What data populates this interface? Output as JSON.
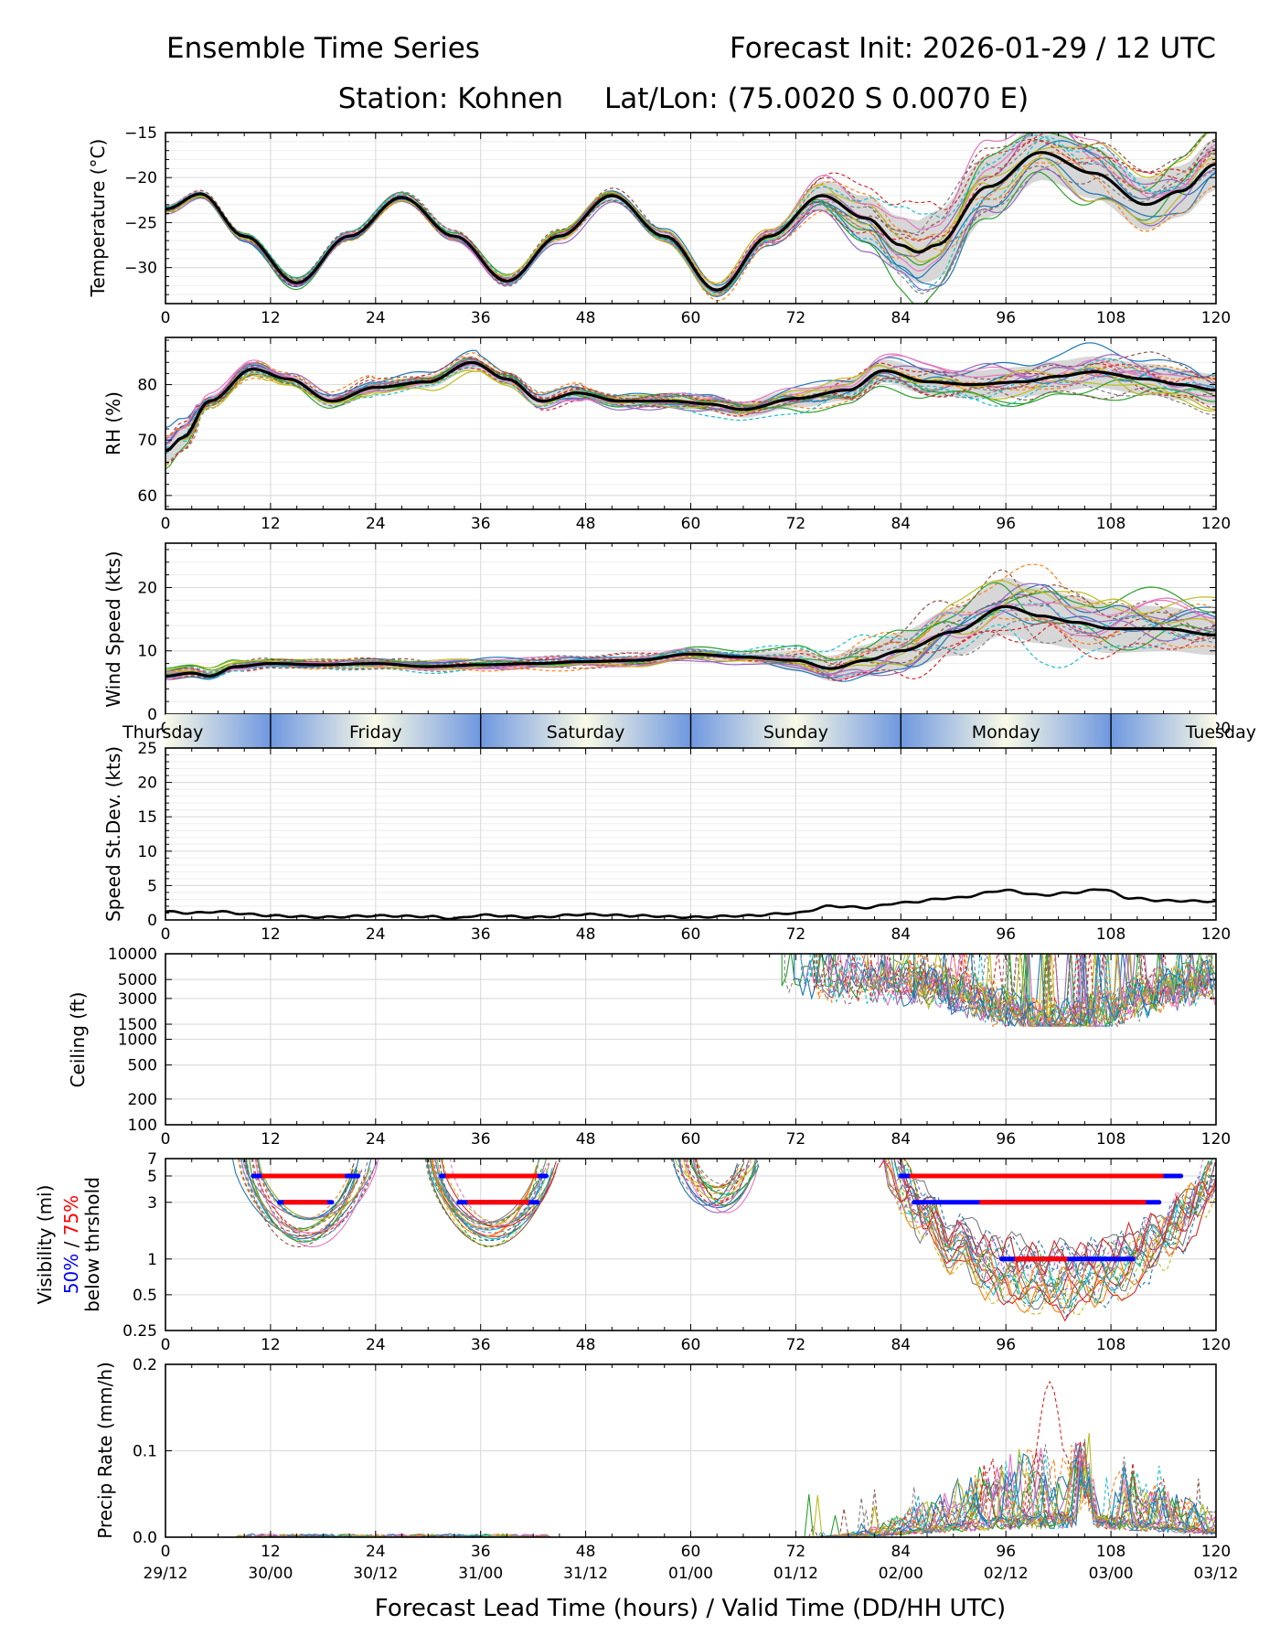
{
  "header": {
    "title_left": "Ensemble Time Series",
    "title_right": "Forecast Init: 2026-01-29 / 12 UTC",
    "station": "Station: Kohnen",
    "latlon": "Lat/Lon: (75.0020 S 0.0070 E)"
  },
  "xaxis": {
    "ticks": [
      0,
      12,
      24,
      36,
      48,
      60,
      72,
      84,
      96,
      108,
      120
    ],
    "valid_labels": [
      "29/12",
      "30/00",
      "30/12",
      "31/00",
      "31/12",
      "01/00",
      "01/12",
      "02/00",
      "02/12",
      "03/00",
      "03/12"
    ],
    "label": "Forecast Lead Time (hours) / Valid Time (DD/HH UTC)"
  },
  "days": [
    "Thursday",
    "Friday",
    "Saturday",
    "Sunday",
    "Monday",
    "Tuesday"
  ],
  "colors": {
    "members": [
      "#1f77b4",
      "#ff7f0e",
      "#2ca02c",
      "#d62728",
      "#9467bd",
      "#8c564b",
      "#e377c2",
      "#7f7f7f",
      "#bcbd22",
      "#17becf"
    ],
    "mean": "#000000",
    "spread": "#d3d3d3",
    "vis50": "#0000ff",
    "vis75": "#ff0000",
    "day_light": "#fafae6",
    "day_dark": "#6f98e0"
  },
  "chart_data": [
    {
      "id": "temperature",
      "type": "line",
      "ylabel": "Temperature (°C)",
      "ylim": [
        -34,
        -15
      ],
      "yticks": [
        -15,
        -20,
        -25,
        -30
      ],
      "ytick_labels": [
        "−15",
        "−20",
        "−25",
        "−30"
      ],
      "mean_series": {
        "x": [
          0,
          4,
          9,
          15,
          21,
          27,
          33,
          39,
          45,
          51,
          57,
          63,
          69,
          75,
          80,
          84,
          86,
          88,
          94,
          100,
          106,
          112,
          116,
          120
        ],
        "y": [
          -23.5,
          -21.8,
          -26.5,
          -31.7,
          -26.5,
          -22.2,
          -26.5,
          -31.5,
          -26.5,
          -22,
          -26.5,
          -32.5,
          -26.5,
          -22,
          -24.5,
          -27.5,
          -28.3,
          -27.5,
          -21,
          -17.2,
          -19.5,
          -23,
          -21.5,
          -18.5
        ]
      },
      "members": 20
    },
    {
      "id": "rh",
      "type": "line",
      "ylabel": "RH (%)",
      "ylim": [
        57.5,
        88.5
      ],
      "yticks": [
        60,
        70,
        80
      ],
      "ytick_labels": [
        "60",
        "70",
        "80"
      ],
      "mean_series": {
        "x": [
          0,
          2,
          5,
          10,
          14,
          19,
          24,
          30,
          35,
          39,
          43,
          47,
          52,
          58,
          62,
          66,
          72,
          78,
          82,
          87,
          92,
          98,
          102,
          106,
          112,
          116,
          120
        ],
        "y": [
          68,
          70.5,
          77,
          82.8,
          81,
          77,
          79.5,
          80.5,
          84,
          81,
          77,
          78.5,
          77,
          77,
          76.5,
          75.5,
          77.5,
          79,
          82.5,
          80.5,
          80,
          80.5,
          81.5,
          82.3,
          81,
          80,
          79
        ]
      },
      "members": 20
    },
    {
      "id": "windspeed",
      "type": "line",
      "ylabel": "Wind Speed (kts)",
      "ylim": [
        0,
        27
      ],
      "yticks": [
        0,
        10,
        20
      ],
      "ytick_labels": [
        "0",
        "10",
        "20"
      ],
      "mean_series": {
        "x": [
          0,
          3,
          5,
          8,
          12,
          18,
          24,
          30,
          36,
          42,
          48,
          54,
          60,
          66,
          72,
          76,
          80,
          84,
          90,
          96,
          100,
          104,
          108,
          114,
          120
        ],
        "y": [
          6,
          6.5,
          6,
          7.5,
          8,
          7.8,
          8,
          7.5,
          7.8,
          8,
          8.3,
          8.5,
          9.5,
          9,
          8.5,
          7.2,
          8.5,
          10,
          13,
          17,
          15.5,
          14.5,
          13.5,
          13.5,
          12.5
        ]
      },
      "members": 20
    },
    {
      "id": "speed_stdev",
      "type": "line",
      "ylabel": "Speed St.Dev. (kts)",
      "ylim": [
        0,
        25
      ],
      "yticks": [
        0,
        5,
        10,
        15,
        20,
        25
      ],
      "ytick_labels": [
        "0",
        "5",
        "10",
        "15",
        "20",
        "25"
      ],
      "series": {
        "x": [
          0,
          3,
          6,
          10,
          12,
          18,
          24,
          30,
          33,
          36,
          42,
          48,
          54,
          60,
          66,
          72,
          76,
          80,
          84,
          90,
          96,
          100,
          104,
          107,
          110,
          114,
          120
        ],
        "y": [
          1.2,
          1.0,
          1.2,
          0.8,
          0.6,
          0.4,
          0.6,
          0.5,
          0.2,
          0.7,
          0.4,
          0.8,
          0.6,
          0.4,
          0.6,
          1.0,
          2.0,
          1.8,
          2.5,
          3.2,
          4.3,
          3.6,
          4.0,
          4.5,
          3.2,
          2.8,
          2.7
        ]
      }
    },
    {
      "id": "ceiling",
      "type": "line",
      "scale": "log",
      "ylabel": "Ceiling (ft)",
      "ylim": [
        100,
        10000
      ],
      "yticks": [
        100,
        200,
        500,
        1000,
        1500,
        3000,
        5000,
        10000
      ],
      "ytick_labels": [
        "100",
        "200",
        "500",
        "1000",
        "1500",
        "3000",
        "5000",
        "10000"
      ],
      "active_range_hours": [
        70,
        120
      ],
      "typical_range_ft": [
        1600,
        9000
      ]
    },
    {
      "id": "visibility",
      "type": "line",
      "scale": "log",
      "ylabel_line1": "Visibility (mi)",
      "ylabel_50": "50%",
      "ylabel_sep": " / ",
      "ylabel_75": "75%",
      "ylabel_line3": "below thrshold",
      "ylim": [
        0.25,
        7
      ],
      "yticks": [
        0.25,
        0.5,
        1,
        3,
        5,
        7
      ],
      "ytick_labels": [
        "0.25",
        "0.5",
        "1",
        "3",
        "5",
        "7"
      ],
      "threshold_bars": [
        {
          "threshold": 5,
          "p50": [
            10,
            22
          ],
          "p75": [
            11,
            20.5
          ]
        },
        {
          "threshold": 3,
          "p50": [
            13,
            19
          ],
          "p75": [
            13.5,
            18.5
          ]
        },
        {
          "threshold": 5,
          "p50": [
            31.5,
            43.5
          ],
          "p75": [
            32,
            42.5
          ]
        },
        {
          "threshold": 3,
          "p50": [
            33.5,
            42.5
          ],
          "p75": [
            34.5,
            41.5
          ]
        },
        {
          "threshold": 5,
          "p50": [
            84,
            116
          ],
          "p75": [
            85,
            114
          ]
        },
        {
          "threshold": 3,
          "p50": [
            85.5,
            113.5
          ],
          "p75": [
            93,
            112
          ]
        },
        {
          "threshold": 1,
          "p50": [
            95.5,
            110.5
          ],
          "p75": [
            97,
            103
          ]
        }
      ]
    },
    {
      "id": "precip",
      "type": "line",
      "ylabel": "Precip Rate (mm/h)",
      "ylim": [
        0,
        0.2
      ],
      "yticks": [
        0,
        0.1,
        0.2
      ],
      "ytick_labels": [
        "0.0",
        "0.1",
        "0.2"
      ],
      "peak_value": 0.18,
      "peak_hour": 101
    }
  ]
}
